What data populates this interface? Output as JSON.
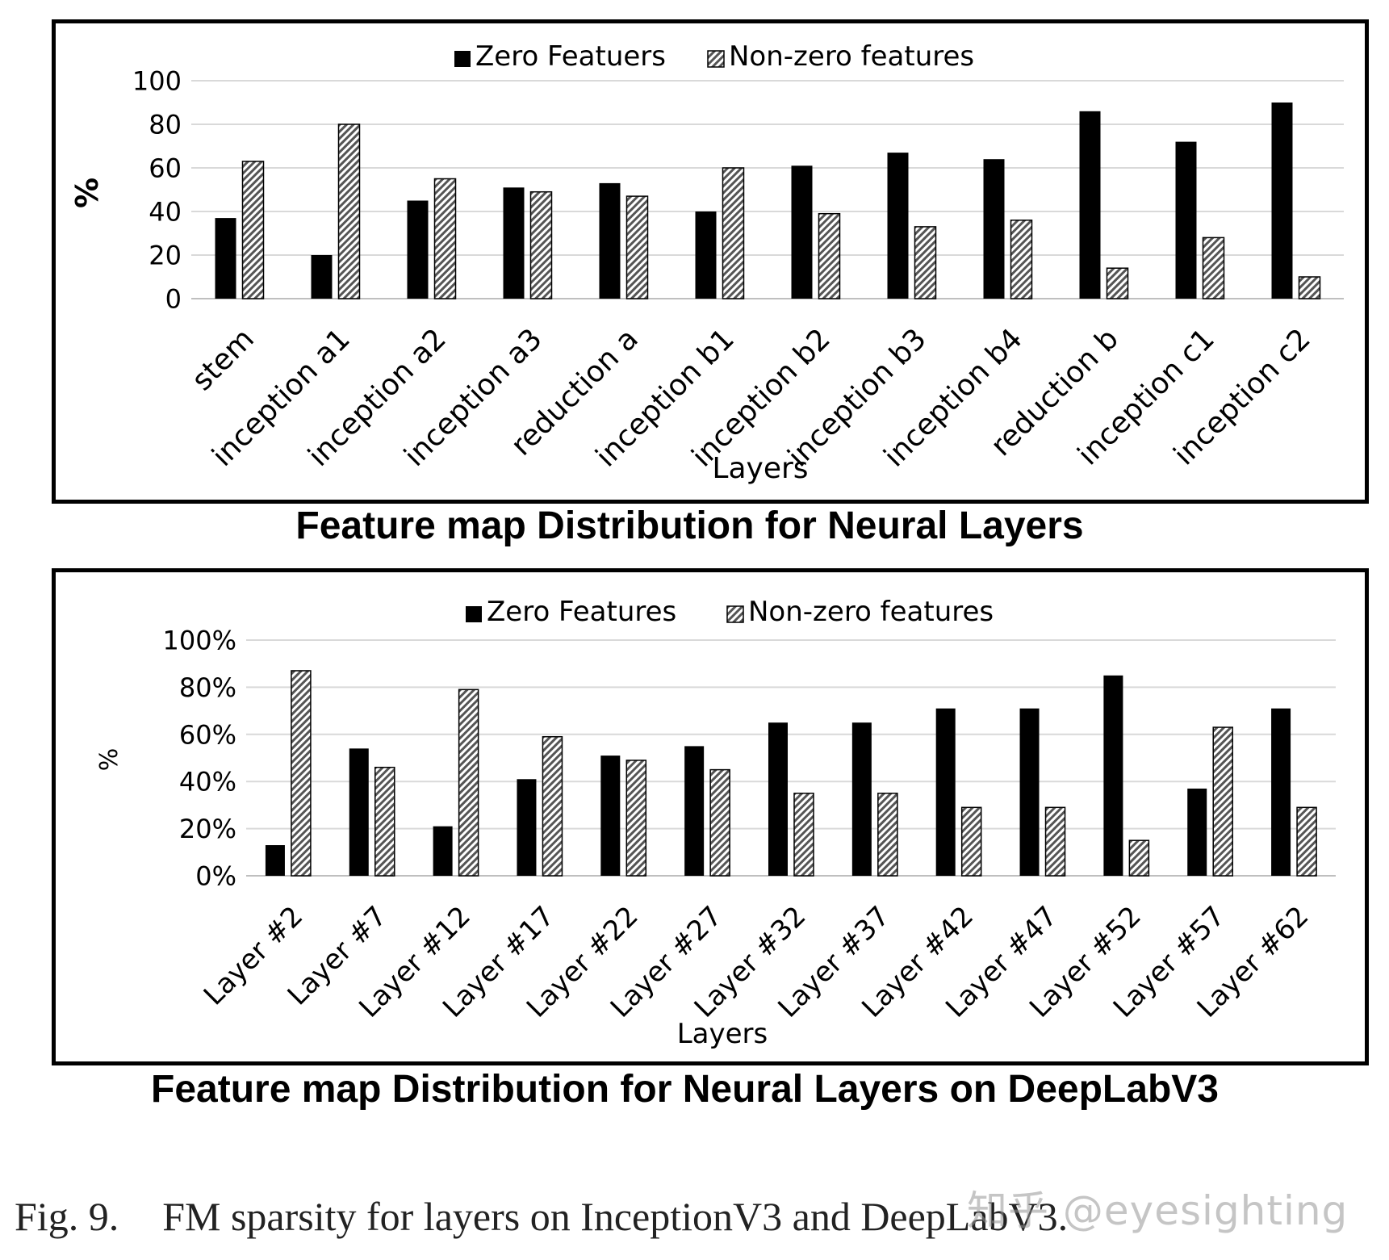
{
  "colors": {
    "zero": "#000000",
    "nonzero_fg": "#555555",
    "nonzero_bg": "#ffffff",
    "grid": "#d9d9d9",
    "axis": "#bfbfbf"
  },
  "chart_data": [
    {
      "type": "bar",
      "title": "Feature map Distribution for Neural Layers",
      "xlabel": "Layers",
      "ylabel": "%",
      "ylim": [
        0,
        100
      ],
      "yticks": [
        "0",
        "20",
        "40",
        "60",
        "80",
        "100"
      ],
      "legend": [
        "Zero Featuers",
        "Non-zero features"
      ],
      "legend_position": "top-center",
      "categories": [
        "stem",
        "inception a1",
        "inception a2",
        "inception a3",
        "reduction a",
        "inception b1",
        "inception b2",
        "inception b3",
        "inception b4",
        "reduction b",
        "inception c1",
        "inception c2"
      ],
      "series": [
        {
          "name": "Zero Featuers",
          "values": [
            37,
            20,
            45,
            51,
            53,
            40,
            61,
            67,
            64,
            86,
            72,
            90
          ]
        },
        {
          "name": "Non-zero features",
          "values": [
            63,
            80,
            55,
            49,
            47,
            60,
            39,
            33,
            36,
            14,
            28,
            10
          ]
        }
      ]
    },
    {
      "type": "bar",
      "title": "Feature map Distribution for Neural Layers on DeepLabV3",
      "xlabel": "Layers",
      "ylabel": "%",
      "ylim": [
        0,
        100
      ],
      "yticks": [
        "0%",
        "20%",
        "40%",
        "60%",
        "80%",
        "100%"
      ],
      "legend": [
        "Zero Features",
        "Non-zero features"
      ],
      "legend_position": "top-center",
      "categories": [
        "Layer  #2",
        "Layer  #7",
        "Layer  #12",
        "Layer  #17",
        "Layer  #22",
        "Layer  #27",
        "Layer  #32",
        "Layer  #37",
        "Layer  #42",
        "Layer  #47",
        "Layer  #52",
        "Layer  #57",
        "Layer  #62"
      ],
      "series": [
        {
          "name": "Zero Features",
          "values": [
            13,
            54,
            21,
            41,
            51,
            55,
            65,
            65,
            71,
            71,
            85,
            37,
            71
          ]
        },
        {
          "name": "Non-zero features",
          "values": [
            87,
            46,
            79,
            59,
            49,
            45,
            35,
            35,
            29,
            29,
            15,
            63,
            29
          ]
        }
      ]
    }
  ],
  "figure_caption": {
    "number": "Fig. 9.",
    "text": "FM sparsity for layers on InceptionV3 and DeepLabV3."
  },
  "watermark": "知乎 @eyesighting"
}
